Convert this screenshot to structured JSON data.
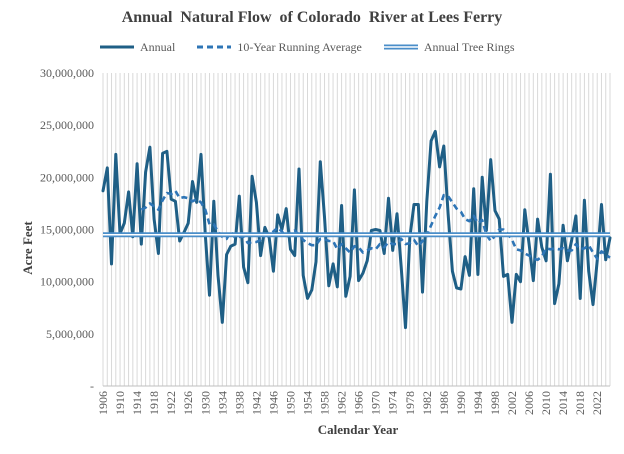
{
  "chart_data": {
    "type": "line",
    "title": "Annual  Natural Flow  of Colorado  River at Lees Ferry",
    "xlabel": "Calendar  Year",
    "ylabel": "Acre Feet",
    "ylim": [
      0,
      30000000
    ],
    "y_ticks": [
      0,
      5000000,
      10000000,
      15000000,
      20000000,
      25000000,
      30000000
    ],
    "y_tick_labels": [
      "-",
      "5,000,000",
      "10,000,000",
      "15,000,000",
      "20,000,000",
      "25,000,000",
      "30,000,000"
    ],
    "x_range": [
      1906,
      2025
    ],
    "x_tick_labels": [
      "1906",
      "1910",
      "1914",
      "1918",
      "1922",
      "1926",
      "1930",
      "1934",
      "1938",
      "1942",
      "1946",
      "1950",
      "1954",
      "1958",
      "1962",
      "1966",
      "1970",
      "1974",
      "1978",
      "1982",
      "1986",
      "1990",
      "1994",
      "1998",
      "2002",
      "2006",
      "2010",
      "2014",
      "2018",
      "2022"
    ],
    "grid": "vertical",
    "legend_position": "top",
    "x": [
      1906,
      1907,
      1908,
      1909,
      1910,
      1911,
      1912,
      1913,
      1914,
      1915,
      1916,
      1917,
      1918,
      1919,
      1920,
      1921,
      1922,
      1923,
      1924,
      1925,
      1926,
      1927,
      1928,
      1929,
      1930,
      1931,
      1932,
      1933,
      1934,
      1935,
      1936,
      1937,
      1938,
      1939,
      1940,
      1941,
      1942,
      1943,
      1944,
      1945,
      1946,
      1947,
      1948,
      1949,
      1950,
      1951,
      1952,
      1953,
      1954,
      1955,
      1956,
      1957,
      1958,
      1959,
      1960,
      1961,
      1962,
      1963,
      1964,
      1965,
      1966,
      1967,
      1968,
      1969,
      1970,
      1971,
      1972,
      1973,
      1974,
      1975,
      1976,
      1977,
      1978,
      1979,
      1980,
      1981,
      1982,
      1983,
      1984,
      1985,
      1986,
      1987,
      1988,
      1989,
      1990,
      1991,
      1992,
      1993,
      1994,
      1995,
      1996,
      1997,
      1998,
      1999,
      2000,
      2001,
      2002,
      2003,
      2004,
      2005,
      2006,
      2007,
      2008,
      2009,
      2010,
      2011,
      2012,
      2013,
      2014,
      2015,
      2016,
      2017,
      2018,
      2019,
      2020,
      2021,
      2022,
      2023,
      2024,
      2025
    ],
    "series": [
      {
        "name": "Annual",
        "color": "#1f5f86",
        "style": "solid",
        "values": [
          18700000,
          20900000,
          11700000,
          22200000,
          14600000,
          15600000,
          18600000,
          14300000,
          21300000,
          13600000,
          20500000,
          22900000,
          16000000,
          12700000,
          22300000,
          22500000,
          17900000,
          17700000,
          13900000,
          14700000,
          15600000,
          19600000,
          17600000,
          22200000,
          14500000,
          8700000,
          17700000,
          10600000,
          6100000,
          12600000,
          13400000,
          13600000,
          18200000,
          11400000,
          9900000,
          20100000,
          17600000,
          12500000,
          15200000,
          14200000,
          11000000,
          16400000,
          15000000,
          17000000,
          13100000,
          12500000,
          20800000,
          10600000,
          8400000,
          9200000,
          11900000,
          21500000,
          16200000,
          9600000,
          11700000,
          9500000,
          17300000,
          8600000,
          10500000,
          18800000,
          10100000,
          10800000,
          12000000,
          14900000,
          15000000,
          14900000,
          12700000,
          18000000,
          13000000,
          16500000,
          11400000,
          5600000,
          14200000,
          17400000,
          17400000,
          9000000,
          17700000,
          23500000,
          24400000,
          21000000,
          23000000,
          16500000,
          11000000,
          9400000,
          9300000,
          12400000,
          10600000,
          18900000,
          10700000,
          20000000,
          14900000,
          21700000,
          16800000,
          16000000,
          10500000,
          10700000,
          6100000,
          10700000,
          10000000,
          16900000,
          13600000,
          10100000,
          16000000,
          13300000,
          12000000,
          20300000,
          7900000,
          9800000,
          15400000,
          12000000,
          14000000,
          16300000,
          8400000,
          17800000,
          11000000,
          7800000,
          12000000,
          17400000,
          12100000,
          14200000
        ]
      },
      {
        "name": "10-Year Running Average",
        "color": "#2e75b6",
        "style": "dashed",
        "x_start": 1915,
        "values": [
          null,
          null,
          null,
          null,
          null,
          null,
          null,
          null,
          null,
          16900000,
          17100000,
          17500000,
          17200000,
          16900000,
          17800000,
          18500000,
          18400000,
          18700000,
          18000000,
          18100000,
          18000000,
          17700000,
          17900000,
          17600000,
          16900000,
          15500000,
          15500000,
          14800000,
          14300000,
          14100000,
          14800000,
          14200000,
          14300000,
          14300000,
          13700000,
          13800000,
          13800000,
          14000000,
          14400000,
          14600000,
          14800000,
          15200000,
          14800000,
          14300000,
          14700000,
          14900000,
          14500000,
          14000000,
          13700000,
          13500000,
          13500000,
          14100000,
          14100000,
          13900000,
          13900000,
          13100000,
          13600000,
          13200000,
          12800000,
          13400000,
          13300000,
          12800000,
          13000000,
          13200000,
          13100000,
          13600000,
          13300000,
          13800000,
          13600000,
          13600000,
          14100000,
          13600000,
          13700000,
          14000000,
          13400000,
          13900000,
          14400000,
          15400000,
          16300000,
          17100000,
          18300000,
          18200000,
          17600000,
          17000000,
          16700000,
          16000000,
          15800000,
          16300000,
          15600000,
          15900000,
          14500000,
          13900000,
          14400000,
          15000000,
          15000000,
          14600000,
          14000000,
          13100000,
          13000000,
          12700000,
          12500000,
          12200000,
          12100000,
          12400000,
          13200000,
          13100000,
          13200000,
          13100000,
          13200000,
          13000000,
          13000000,
          13600000,
          13100000,
          13200000,
          13500000,
          12800000,
          12200000,
          12900000,
          12600000,
          12300000
        ],
        "note_values_aligned_to_x": true
      },
      {
        "name": "Annual Tree Rings",
        "color": "#4a8ec9",
        "style": "double",
        "constant": 14500000
      }
    ]
  },
  "legend": {
    "annual": "Annual",
    "running_avg": "10-Year Running Average",
    "tree_rings": "Annual Tree Rings"
  }
}
